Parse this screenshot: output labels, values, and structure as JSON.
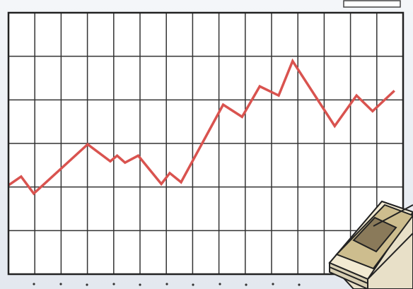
{
  "chart_data": {
    "type": "line",
    "x": [
      0,
      0.48,
      0.96,
      3.01,
      3.87,
      4.13,
      4.43,
      4.93,
      5.81,
      6.13,
      6.56,
      8.16,
      8.88,
      9.55,
      10.27,
      10.8,
      12.4,
      13.23,
      13.84,
      14.67
    ],
    "series": [
      {
        "color": "#d9534f",
        "values": [
          2.04,
          2.24,
          1.85,
          2.98,
          2.59,
          2.72,
          2.56,
          2.72,
          2.07,
          2.32,
          2.11,
          3.89,
          3.61,
          4.31,
          4.1,
          4.89,
          3.4,
          4.1,
          3.74,
          4.21
        ]
      }
    ],
    "xlim": [
      0,
      15
    ],
    "ylim": [
      0,
      6
    ],
    "xticks": [
      0,
      1,
      2,
      3,
      4,
      5,
      6,
      7,
      8,
      9,
      10,
      11,
      12,
      13,
      14,
      15
    ],
    "yticks": [
      0,
      1,
      2,
      3,
      4,
      5,
      6
    ],
    "grid": true
  }
}
